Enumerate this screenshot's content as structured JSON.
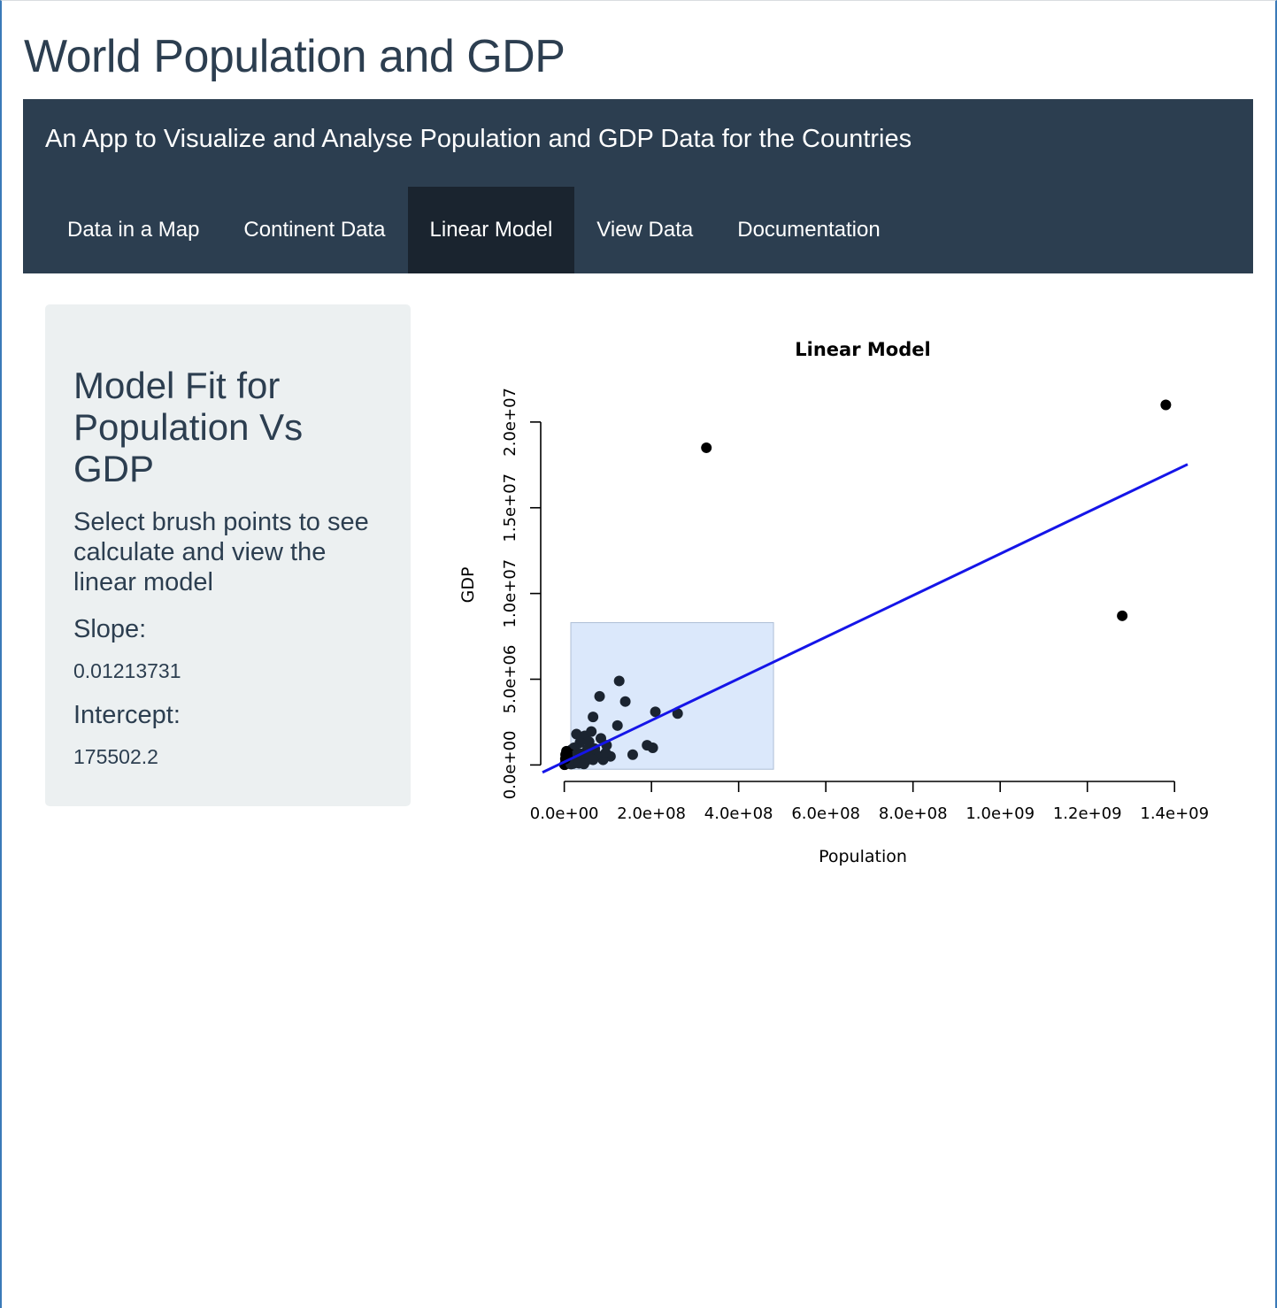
{
  "app": {
    "title": "World Population and GDP"
  },
  "navbar": {
    "brand": "An App to Visualize and Analyse Population and GDP Data for the Countries",
    "tabs": [
      {
        "label": "Data in a Map",
        "active": false
      },
      {
        "label": "Continent Data",
        "active": false
      },
      {
        "label": "Linear Model",
        "active": true
      },
      {
        "label": "View Data",
        "active": false
      },
      {
        "label": "Documentation",
        "active": false
      }
    ]
  },
  "sidebar": {
    "heading": "Model Fit for Population Vs GDP",
    "instructions": "Select brush points to see calculate and view the linear model",
    "slope_label": "Slope:",
    "slope_value": "0.01213731",
    "intercept_label": "Intercept:",
    "intercept_value": "175502.2"
  },
  "colors": {
    "navbar_bg": "#2c3e50",
    "active_tab_bg": "#1a242f",
    "panel_bg": "#ecf0f1",
    "fit_line": "#1515e8",
    "brush_fill": "#dbe8fb",
    "points": "#1b2430"
  },
  "chart_data": {
    "type": "scatter",
    "title": "Linear Model",
    "xlabel": "Population",
    "ylabel": "GDP",
    "x_ticks": [
      0,
      200000000,
      400000000,
      600000000,
      800000000,
      1000000000,
      1200000000,
      1400000000
    ],
    "x_tick_labels": [
      "0.0e+00",
      "2.0e+08",
      "4.0e+08",
      "6.0e+08",
      "8.0e+08",
      "1.0e+09",
      "1.2e+09",
      "1.4e+09"
    ],
    "y_ticks": [
      0,
      5000000,
      10000000,
      15000000,
      20000000
    ],
    "y_tick_labels": [
      "0.0e+00",
      "5.0e+06",
      "1.0e+07",
      "1.5e+07",
      "2.0e+07"
    ],
    "xlim": [
      -50000000,
      1430000000
    ],
    "ylim": [
      -600000,
      21800000
    ],
    "grid": false,
    "brush": {
      "x": [
        15000000,
        480000000
      ],
      "y": [
        -250000,
        8300000
      ]
    },
    "fit_line": {
      "slope": 0.01213731,
      "intercept": 175502.2,
      "x_range": [
        -50000000,
        1430000000
      ]
    },
    "points": [
      [
        326000000,
        18500000
      ],
      [
        1380000000,
        21000000
      ],
      [
        1280000000,
        8700000
      ],
      [
        126000000,
        4900000
      ],
      [
        81000000,
        4000000
      ],
      [
        140000000,
        3700000
      ],
      [
        209000000,
        3100000
      ],
      [
        260000000,
        3000000
      ],
      [
        66000000,
        2800000
      ],
      [
        122000000,
        2300000
      ],
      [
        28000000,
        1800000
      ],
      [
        47000000,
        1700000
      ],
      [
        62000000,
        1950000
      ],
      [
        84000000,
        1550000
      ],
      [
        97000000,
        1150000
      ],
      [
        190000000,
        1150000
      ],
      [
        203000000,
        1000000
      ],
      [
        157000000,
        600000
      ],
      [
        106000000,
        500000
      ],
      [
        89000000,
        300000
      ],
      [
        95000000,
        700000
      ],
      [
        74000000,
        600000
      ],
      [
        53000000,
        900000
      ],
      [
        36000000,
        1300000
      ],
      [
        57000000,
        1350000
      ],
      [
        44000000,
        400000
      ],
      [
        32000000,
        700000
      ],
      [
        22000000,
        1000000
      ],
      [
        17000000,
        900000
      ],
      [
        12000000,
        650000
      ],
      [
        9000000,
        450000
      ],
      [
        6000000,
        300000
      ],
      [
        4000000,
        150000
      ],
      [
        3000000,
        600000
      ],
      [
        5000000,
        800000
      ],
      [
        8000000,
        200000
      ],
      [
        11000000,
        350000
      ],
      [
        14000000,
        180000
      ],
      [
        19000000,
        400000
      ],
      [
        24000000,
        550000
      ],
      [
        27000000,
        250000
      ],
      [
        31000000,
        300000
      ],
      [
        39000000,
        650000
      ],
      [
        41000000,
        200000
      ],
      [
        50000000,
        250000
      ],
      [
        58000000,
        450000
      ],
      [
        66000000,
        300000
      ],
      [
        70000000,
        950000
      ],
      [
        2000000,
        50000
      ],
      [
        1000000,
        20000
      ],
      [
        500000,
        10000
      ],
      [
        7000000,
        500000
      ],
      [
        10000000,
        100000
      ],
      [
        15000000,
        50000
      ],
      [
        20000000,
        80000
      ],
      [
        25000000,
        120000
      ],
      [
        34000000,
        100000
      ],
      [
        45000000,
        60000
      ],
      [
        2500000,
        350000
      ],
      [
        6500000,
        700000
      ]
    ]
  }
}
